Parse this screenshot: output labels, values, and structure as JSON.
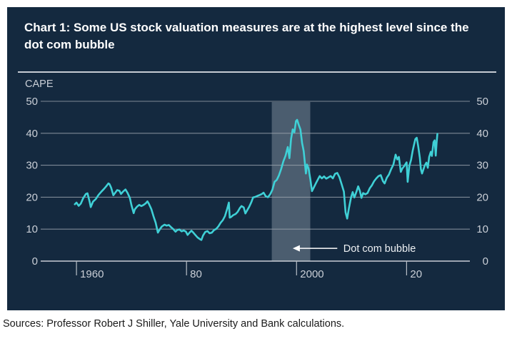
{
  "figure": {
    "title": "Chart 1: Some US stock valuation measures are at the highest level since the dot com bubble",
    "source_note": "Sources: Professor Robert J Shiller, Yale University and Bank calculations."
  },
  "colors": {
    "panel_bg": "#14293F",
    "title_text": "#FFFFFF",
    "axis_text": "#C9CED6",
    "grid": "#99A2AC",
    "zero_line": "#C9CED6",
    "tick": "#B9BFC7",
    "line": "#3FD0D6",
    "band": "#4B5D6F",
    "annotation_text": "#EDF0F3",
    "source_text": "#1A1A1A"
  },
  "chart_data": {
    "type": "line",
    "title": "Chart 1: Some US stock valuation measures are at the highest level since the dot com bubble",
    "ylabel": "CAPE",
    "xlabel": "",
    "grid": true,
    "legend_position": "none",
    "ylim": [
      0,
      50
    ],
    "yticks": [
      0,
      10,
      20,
      30,
      40,
      50
    ],
    "xlim": [
      1953.5,
      2031.5
    ],
    "xticks": [
      {
        "year": 1960,
        "label": "1960"
      },
      {
        "year": 1980,
        "label": "80"
      },
      {
        "year": 2000,
        "label": "2000"
      },
      {
        "year": 2020,
        "label": "20"
      }
    ],
    "band": {
      "name": "Dot com bubble",
      "from": 1995.5,
      "to": 2002.5
    },
    "annotation": {
      "label": "Dot com bubble",
      "value_y": 4.0,
      "arrow_tip_year": 1999.3,
      "arrow_tail_year": 2007.4,
      "label_year": 2008.5
    },
    "series": [
      {
        "name": "CAPE",
        "points": [
          [
            1959.7,
            17.8
          ],
          [
            1960.0,
            18.3
          ],
          [
            1960.4,
            17.3
          ],
          [
            1960.8,
            18.0
          ],
          [
            1961.2,
            19.6
          ],
          [
            1961.7,
            21.0
          ],
          [
            1962.0,
            21.2
          ],
          [
            1962.4,
            18.5
          ],
          [
            1962.6,
            16.9
          ],
          [
            1963.0,
            18.6
          ],
          [
            1963.5,
            19.4
          ],
          [
            1964.0,
            20.7
          ],
          [
            1964.5,
            21.7
          ],
          [
            1965.0,
            22.6
          ],
          [
            1965.4,
            23.4
          ],
          [
            1965.8,
            24.3
          ],
          [
            1966.0,
            24.1
          ],
          [
            1966.3,
            23.0
          ],
          [
            1966.7,
            20.6
          ],
          [
            1967.0,
            21.3
          ],
          [
            1967.4,
            22.2
          ],
          [
            1967.8,
            22.0
          ],
          [
            1968.1,
            21.0
          ],
          [
            1968.5,
            21.8
          ],
          [
            1968.9,
            22.4
          ],
          [
            1969.3,
            21.3
          ],
          [
            1969.7,
            19.8
          ],
          [
            1970.0,
            17.5
          ],
          [
            1970.4,
            15.0
          ],
          [
            1970.6,
            16.2
          ],
          [
            1971.0,
            17.0
          ],
          [
            1971.4,
            17.6
          ],
          [
            1971.8,
            17.2
          ],
          [
            1972.2,
            17.6
          ],
          [
            1972.6,
            18.1
          ],
          [
            1972.9,
            18.7
          ],
          [
            1973.2,
            17.8
          ],
          [
            1973.6,
            16.3
          ],
          [
            1974.0,
            14.0
          ],
          [
            1974.4,
            12.0
          ],
          [
            1974.8,
            8.9
          ],
          [
            1975.1,
            9.8
          ],
          [
            1975.5,
            10.8
          ],
          [
            1976.0,
            11.4
          ],
          [
            1976.4,
            11.1
          ],
          [
            1976.8,
            11.3
          ],
          [
            1977.2,
            10.6
          ],
          [
            1977.6,
            10.0
          ],
          [
            1978.0,
            9.2
          ],
          [
            1978.3,
            9.7
          ],
          [
            1978.7,
            9.9
          ],
          [
            1979.1,
            9.3
          ],
          [
            1979.5,
            9.6
          ],
          [
            1979.9,
            9.2
          ],
          [
            1980.2,
            8.2
          ],
          [
            1980.6,
            9.0
          ],
          [
            1980.9,
            9.5
          ],
          [
            1981.2,
            9.0
          ],
          [
            1981.6,
            8.2
          ],
          [
            1982.0,
            7.4
          ],
          [
            1982.4,
            6.9
          ],
          [
            1982.7,
            6.6
          ],
          [
            1983.0,
            8.0
          ],
          [
            1983.4,
            9.1
          ],
          [
            1983.8,
            9.4
          ],
          [
            1984.2,
            8.7
          ],
          [
            1984.6,
            8.9
          ],
          [
            1985.0,
            9.7
          ],
          [
            1985.4,
            10.1
          ],
          [
            1985.8,
            10.9
          ],
          [
            1986.2,
            12.0
          ],
          [
            1986.6,
            12.8
          ],
          [
            1987.0,
            14.1
          ],
          [
            1987.4,
            16.4
          ],
          [
            1987.7,
            18.3
          ],
          [
            1987.85,
            13.6
          ],
          [
            1988.1,
            13.8
          ],
          [
            1988.5,
            14.4
          ],
          [
            1988.9,
            14.7
          ],
          [
            1989.3,
            15.4
          ],
          [
            1989.7,
            16.6
          ],
          [
            1990.0,
            17.2
          ],
          [
            1990.4,
            16.8
          ],
          [
            1990.7,
            14.9
          ],
          [
            1991.0,
            15.8
          ],
          [
            1991.4,
            17.0
          ],
          [
            1991.8,
            18.5
          ],
          [
            1992.1,
            19.9
          ],
          [
            1992.5,
            20.1
          ],
          [
            1992.9,
            20.4
          ],
          [
            1993.3,
            20.7
          ],
          [
            1993.7,
            21.0
          ],
          [
            1994.0,
            21.4
          ],
          [
            1994.4,
            20.3
          ],
          [
            1994.8,
            20.0
          ],
          [
            1995.2,
            20.9
          ],
          [
            1995.6,
            22.3
          ],
          [
            1996.0,
            24.8
          ],
          [
            1996.4,
            25.4
          ],
          [
            1996.8,
            26.8
          ],
          [
            1997.2,
            28.8
          ],
          [
            1997.6,
            31.2
          ],
          [
            1998.0,
            33.0
          ],
          [
            1998.4,
            35.7
          ],
          [
            1998.7,
            32.2
          ],
          [
            1999.0,
            38.2
          ],
          [
            1999.3,
            41.2
          ],
          [
            1999.6,
            40.3
          ],
          [
            1999.9,
            43.8
          ],
          [
            2000.1,
            44.2
          ],
          [
            2000.4,
            42.6
          ],
          [
            2000.7,
            41.2
          ],
          [
            2001.0,
            37.0
          ],
          [
            2001.3,
            34.4
          ],
          [
            2001.7,
            27.4
          ],
          [
            2001.9,
            30.2
          ],
          [
            2002.2,
            28.9
          ],
          [
            2002.5,
            25.6
          ],
          [
            2002.8,
            21.9
          ],
          [
            2003.1,
            22.9
          ],
          [
            2003.5,
            24.3
          ],
          [
            2003.9,
            25.6
          ],
          [
            2004.2,
            26.6
          ],
          [
            2004.6,
            25.9
          ],
          [
            2005.0,
            26.5
          ],
          [
            2005.4,
            25.8
          ],
          [
            2005.8,
            26.2
          ],
          [
            2006.2,
            26.6
          ],
          [
            2006.6,
            25.9
          ],
          [
            2007.0,
            27.3
          ],
          [
            2007.4,
            27.6
          ],
          [
            2007.8,
            26.2
          ],
          [
            2008.2,
            24.0
          ],
          [
            2008.6,
            21.7
          ],
          [
            2008.9,
            15.3
          ],
          [
            2009.2,
            13.3
          ],
          [
            2009.5,
            16.4
          ],
          [
            2009.9,
            19.9
          ],
          [
            2010.2,
            21.6
          ],
          [
            2010.5,
            19.9
          ],
          [
            2010.9,
            21.8
          ],
          [
            2011.2,
            23.4
          ],
          [
            2011.5,
            22.0
          ],
          [
            2011.8,
            19.8
          ],
          [
            2012.1,
            21.3
          ],
          [
            2012.5,
            20.9
          ],
          [
            2012.9,
            21.3
          ],
          [
            2013.3,
            22.8
          ],
          [
            2013.7,
            23.7
          ],
          [
            2014.1,
            25.0
          ],
          [
            2014.5,
            25.9
          ],
          [
            2014.9,
            26.6
          ],
          [
            2015.3,
            26.9
          ],
          [
            2015.7,
            25.0
          ],
          [
            2016.0,
            24.3
          ],
          [
            2016.4,
            26.1
          ],
          [
            2016.8,
            27.1
          ],
          [
            2017.2,
            28.8
          ],
          [
            2017.6,
            30.2
          ],
          [
            2018.0,
            33.3
          ],
          [
            2018.3,
            31.8
          ],
          [
            2018.6,
            32.6
          ],
          [
            2018.95,
            27.9
          ],
          [
            2019.2,
            28.9
          ],
          [
            2019.6,
            29.8
          ],
          [
            2020.0,
            30.9
          ],
          [
            2020.2,
            24.8
          ],
          [
            2020.5,
            29.8
          ],
          [
            2020.8,
            31.6
          ],
          [
            2021.1,
            34.5
          ],
          [
            2021.4,
            36.8
          ],
          [
            2021.6,
            38.2
          ],
          [
            2021.85,
            38.6
          ],
          [
            2022.1,
            36.0
          ],
          [
            2022.4,
            32.4
          ],
          [
            2022.6,
            28.8
          ],
          [
            2022.8,
            27.4
          ],
          [
            2023.0,
            28.4
          ],
          [
            2023.3,
            29.9
          ],
          [
            2023.6,
            30.8
          ],
          [
            2023.85,
            29.2
          ],
          [
            2024.1,
            32.6
          ],
          [
            2024.4,
            34.2
          ],
          [
            2024.6,
            32.9
          ],
          [
            2024.9,
            37.2
          ],
          [
            2025.1,
            37.8
          ],
          [
            2025.3,
            33.0
          ],
          [
            2025.45,
            37.0
          ],
          [
            2025.6,
            39.8
          ]
        ]
      }
    ]
  }
}
